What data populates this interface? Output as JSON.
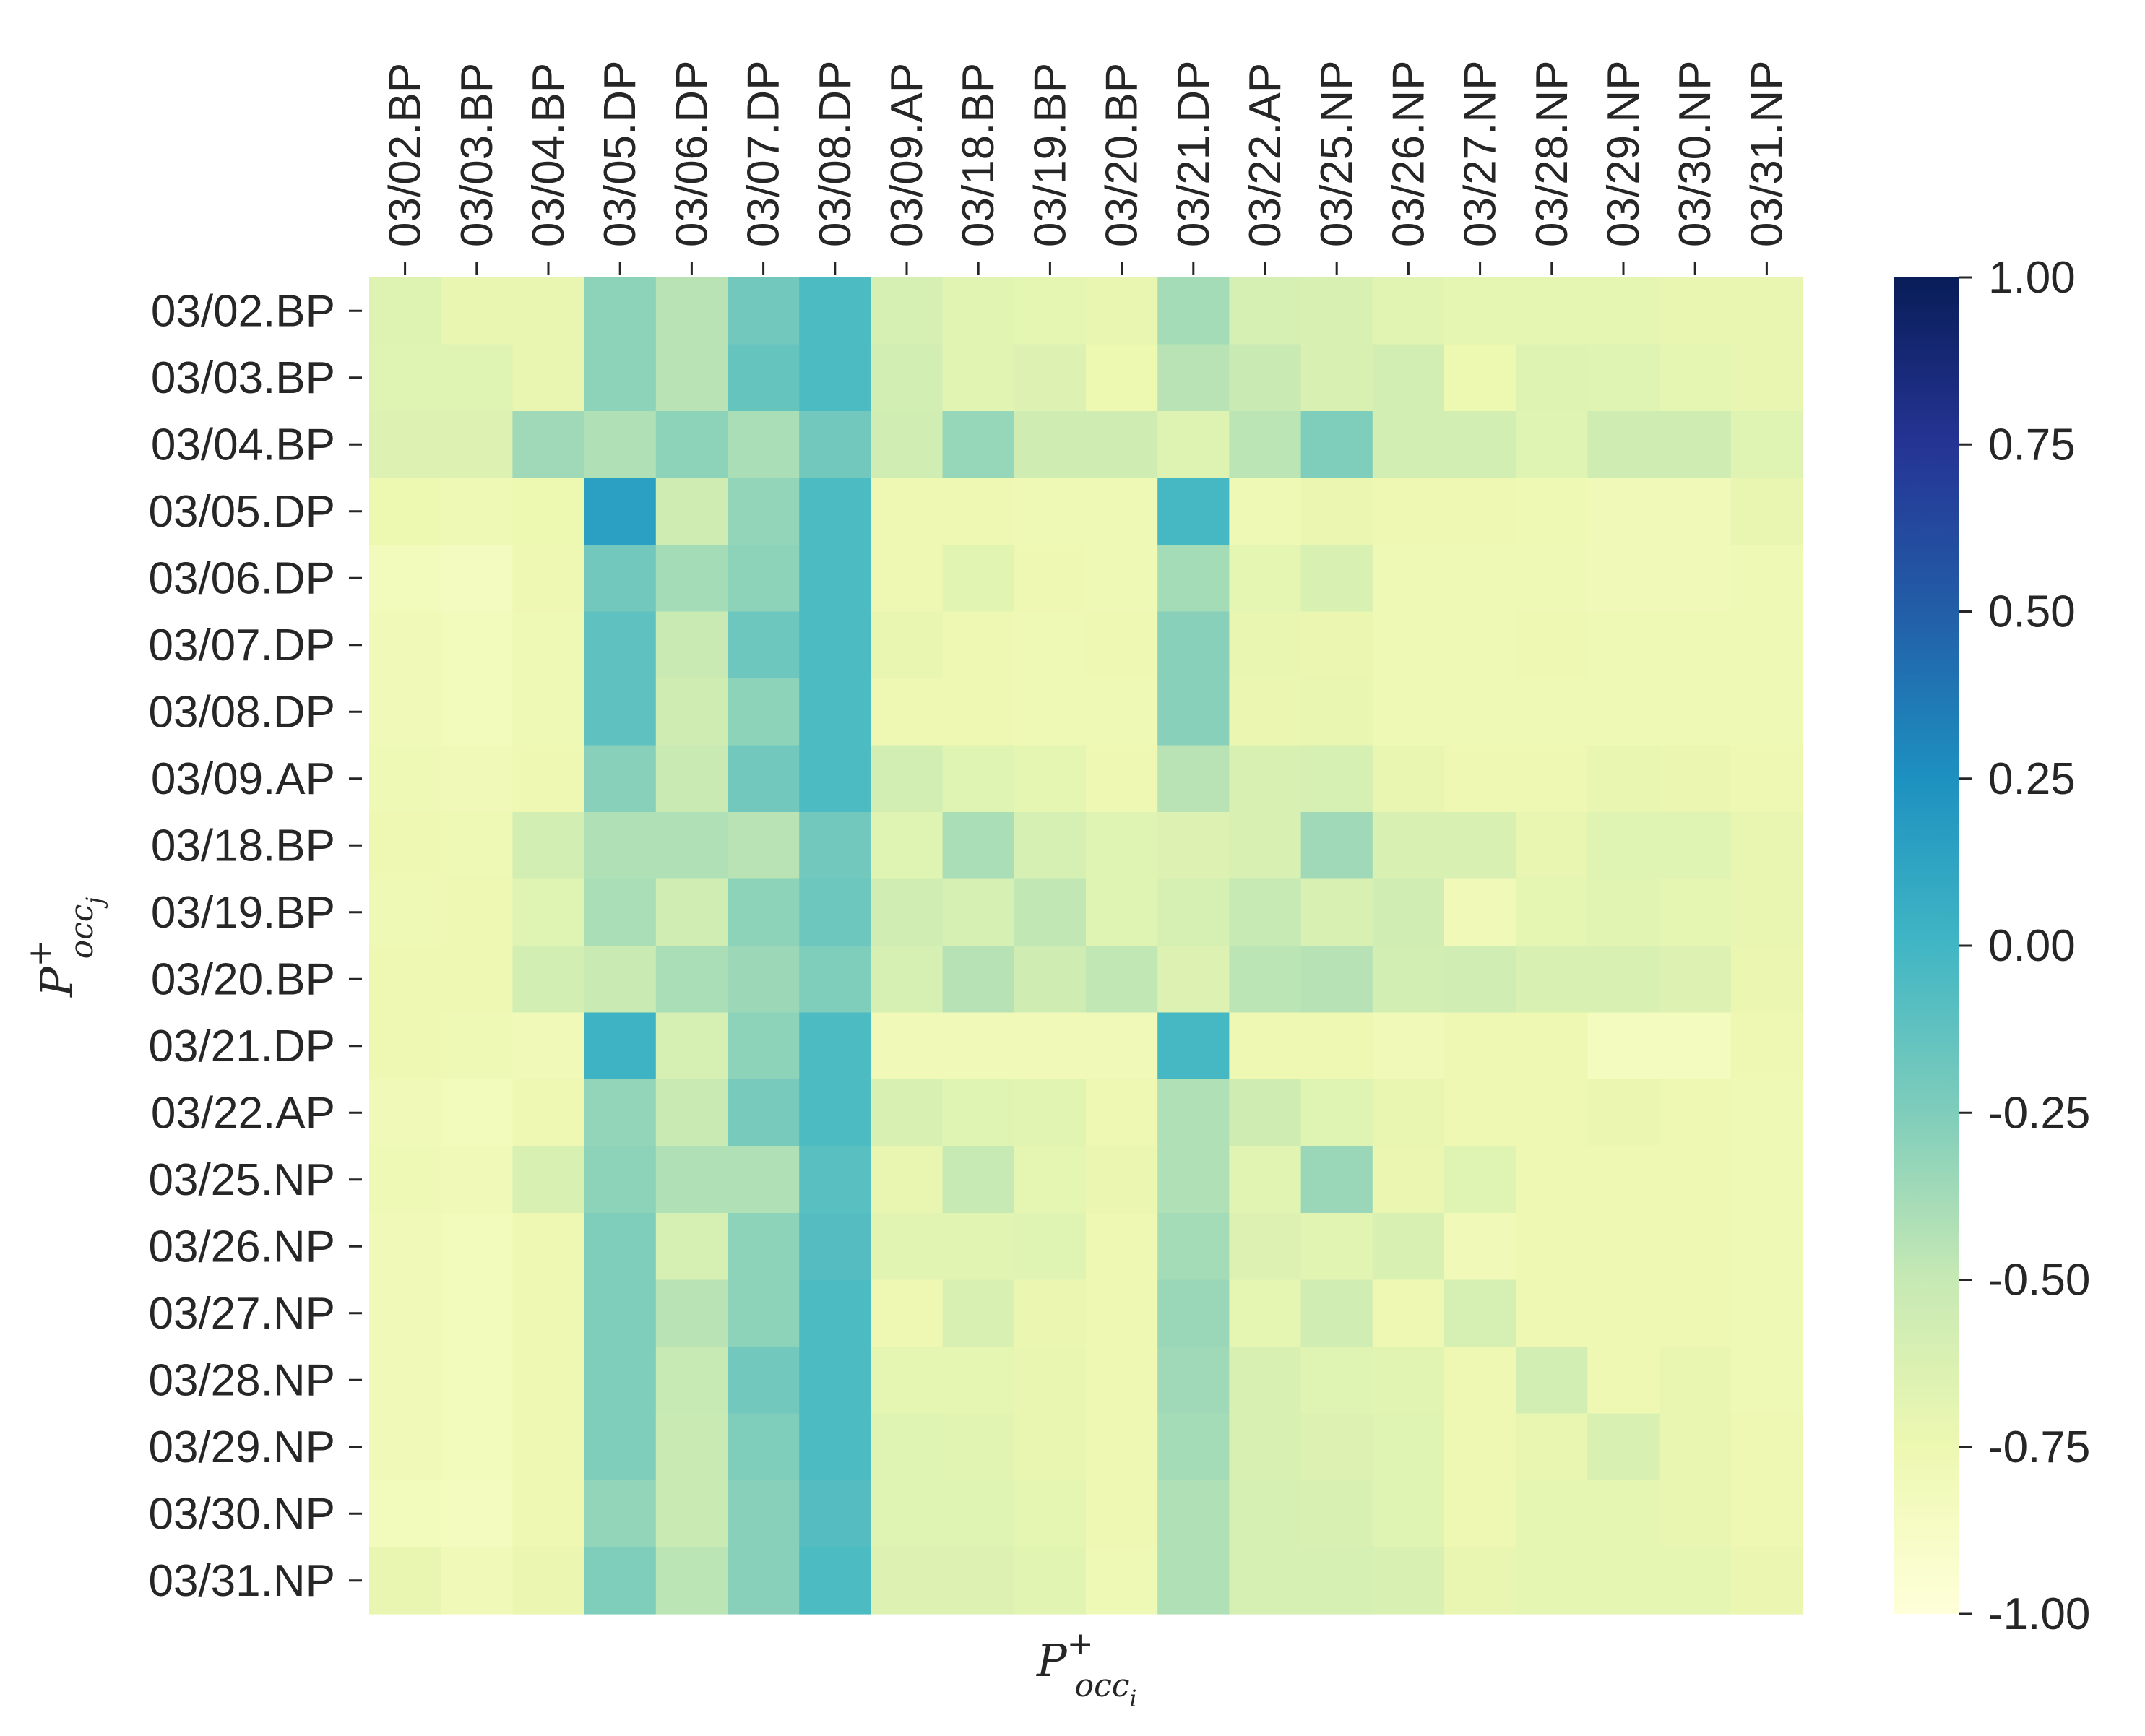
{
  "chart_data": {
    "type": "heatmap",
    "title": "",
    "xlabel": "P+occ_i",
    "ylabel": "P+occ_j",
    "xlabel_parts": {
      "base": "P",
      "sup": "+",
      "sub": "occ",
      "subsub": "i"
    },
    "ylabel_parts": {
      "base": "P",
      "sup": "+",
      "sub": "occ",
      "subsub": "j"
    },
    "x_categories": [
      "03/02.BP",
      "03/03.BP",
      "03/04.BP",
      "03/05.DP",
      "03/06.DP",
      "03/07.DP",
      "03/08.DP",
      "03/09.AP",
      "03/18.BP",
      "03/19.BP",
      "03/20.BP",
      "03/21.DP",
      "03/22.AP",
      "03/25.NP",
      "03/26.NP",
      "03/27.NP",
      "03/28.NP",
      "03/29.NP",
      "03/30.NP",
      "03/31.NP"
    ],
    "y_categories": [
      "03/02.BP",
      "03/03.BP",
      "03/04.BP",
      "03/05.DP",
      "03/06.DP",
      "03/07.DP",
      "03/08.DP",
      "03/09.AP",
      "03/18.BP",
      "03/19.BP",
      "03/20.BP",
      "03/21.DP",
      "03/22.AP",
      "03/25.NP",
      "03/26.NP",
      "03/27.NP",
      "03/28.NP",
      "03/29.NP",
      "03/30.NP",
      "03/31.NP"
    ],
    "colormap": "YlGnBu",
    "colormap_stops": [
      "#ffffd9",
      "#edf8b1",
      "#c7e9b4",
      "#7fcdbb",
      "#41b6c4",
      "#1d91c0",
      "#225ea8",
      "#253494",
      "#081d58"
    ],
    "vmin": -1.0,
    "vmax": 1.0,
    "colorbar_ticks": [
      "1.00",
      "0.75",
      "0.50",
      "0.25",
      "0.00",
      "-0.25",
      "-0.50",
      "-0.75",
      "-1.00"
    ],
    "colorbar_tick_values": [
      1.0,
      0.75,
      0.5,
      0.25,
      0.0,
      -0.25,
      -0.5,
      -0.75,
      -1.0
    ],
    "values": [
      [
        -0.65,
        -0.72,
        -0.72,
        -0.3,
        -0.45,
        -0.2,
        -0.05,
        -0.6,
        -0.68,
        -0.7,
        -0.72,
        -0.38,
        -0.6,
        -0.62,
        -0.68,
        -0.7,
        -0.7,
        -0.7,
        -0.72,
        -0.72
      ],
      [
        -0.66,
        -0.66,
        -0.72,
        -0.3,
        -0.45,
        -0.15,
        -0.05,
        -0.58,
        -0.68,
        -0.64,
        -0.75,
        -0.45,
        -0.52,
        -0.62,
        -0.58,
        -0.75,
        -0.65,
        -0.66,
        -0.7,
        -0.72
      ],
      [
        -0.64,
        -0.64,
        -0.36,
        -0.42,
        -0.3,
        -0.4,
        -0.2,
        -0.56,
        -0.33,
        -0.55,
        -0.55,
        -0.65,
        -0.46,
        -0.25,
        -0.58,
        -0.58,
        -0.66,
        -0.55,
        -0.55,
        -0.66
      ],
      [
        -0.75,
        -0.78,
        -0.75,
        0.15,
        -0.55,
        -0.32,
        -0.05,
        -0.76,
        -0.76,
        -0.78,
        -0.78,
        -0.02,
        -0.78,
        -0.74,
        -0.76,
        -0.76,
        -0.77,
        -0.8,
        -0.8,
        -0.72
      ],
      [
        -0.82,
        -0.85,
        -0.76,
        -0.2,
        -0.38,
        -0.3,
        -0.05,
        -0.76,
        -0.68,
        -0.76,
        -0.78,
        -0.38,
        -0.7,
        -0.62,
        -0.78,
        -0.78,
        -0.78,
        -0.8,
        -0.8,
        -0.78
      ],
      [
        -0.8,
        -0.82,
        -0.78,
        -0.12,
        -0.52,
        -0.18,
        -0.05,
        -0.72,
        -0.76,
        -0.78,
        -0.76,
        -0.28,
        -0.72,
        -0.74,
        -0.78,
        -0.78,
        -0.76,
        -0.78,
        -0.78,
        -0.78
      ],
      [
        -0.8,
        -0.82,
        -0.78,
        -0.12,
        -0.55,
        -0.3,
        -0.05,
        -0.76,
        -0.76,
        -0.78,
        -0.78,
        -0.28,
        -0.74,
        -0.72,
        -0.78,
        -0.78,
        -0.78,
        -0.78,
        -0.78,
        -0.78
      ],
      [
        -0.78,
        -0.8,
        -0.76,
        -0.28,
        -0.52,
        -0.2,
        -0.05,
        -0.58,
        -0.66,
        -0.7,
        -0.76,
        -0.45,
        -0.62,
        -0.6,
        -0.72,
        -0.76,
        -0.76,
        -0.72,
        -0.74,
        -0.76
      ],
      [
        -0.76,
        -0.78,
        -0.58,
        -0.42,
        -0.42,
        -0.45,
        -0.2,
        -0.66,
        -0.4,
        -0.6,
        -0.66,
        -0.64,
        -0.62,
        -0.36,
        -0.62,
        -0.62,
        -0.72,
        -0.66,
        -0.66,
        -0.72
      ],
      [
        -0.78,
        -0.76,
        -0.66,
        -0.4,
        -0.56,
        -0.3,
        -0.18,
        -0.56,
        -0.6,
        -0.48,
        -0.66,
        -0.6,
        -0.5,
        -0.62,
        -0.56,
        -0.8,
        -0.7,
        -0.68,
        -0.7,
        -0.72
      ],
      [
        -0.76,
        -0.76,
        -0.58,
        -0.52,
        -0.4,
        -0.35,
        -0.25,
        -0.6,
        -0.44,
        -0.55,
        -0.48,
        -0.64,
        -0.46,
        -0.44,
        -0.58,
        -0.56,
        -0.62,
        -0.62,
        -0.64,
        -0.74
      ],
      [
        -0.76,
        -0.78,
        -0.8,
        0.02,
        -0.6,
        -0.3,
        -0.05,
        -0.8,
        -0.8,
        -0.8,
        -0.8,
        -0.02,
        -0.76,
        -0.76,
        -0.8,
        -0.76,
        -0.76,
        -0.84,
        -0.84,
        -0.76
      ],
      [
        -0.8,
        -0.82,
        -0.76,
        -0.32,
        -0.52,
        -0.22,
        -0.05,
        -0.62,
        -0.66,
        -0.68,
        -0.76,
        -0.42,
        -0.55,
        -0.66,
        -0.72,
        -0.76,
        -0.76,
        -0.74,
        -0.76,
        -0.78
      ],
      [
        -0.78,
        -0.8,
        -0.62,
        -0.3,
        -0.42,
        -0.42,
        -0.1,
        -0.72,
        -0.5,
        -0.7,
        -0.74,
        -0.42,
        -0.68,
        -0.34,
        -0.74,
        -0.66,
        -0.76,
        -0.76,
        -0.76,
        -0.78
      ],
      [
        -0.8,
        -0.82,
        -0.76,
        -0.25,
        -0.6,
        -0.3,
        -0.08,
        -0.68,
        -0.68,
        -0.66,
        -0.76,
        -0.38,
        -0.64,
        -0.68,
        -0.62,
        -0.8,
        -0.76,
        -0.76,
        -0.76,
        -0.78
      ],
      [
        -0.8,
        -0.82,
        -0.76,
        -0.25,
        -0.45,
        -0.3,
        -0.05,
        -0.76,
        -0.62,
        -0.74,
        -0.76,
        -0.34,
        -0.7,
        -0.56,
        -0.76,
        -0.6,
        -0.76,
        -0.76,
        -0.76,
        -0.78
      ],
      [
        -0.8,
        -0.82,
        -0.76,
        -0.25,
        -0.5,
        -0.2,
        -0.05,
        -0.7,
        -0.7,
        -0.72,
        -0.76,
        -0.36,
        -0.62,
        -0.66,
        -0.68,
        -0.76,
        -0.58,
        -0.76,
        -0.72,
        -0.78
      ],
      [
        -0.8,
        -0.82,
        -0.76,
        -0.25,
        -0.52,
        -0.25,
        -0.05,
        -0.66,
        -0.68,
        -0.72,
        -0.76,
        -0.38,
        -0.62,
        -0.64,
        -0.66,
        -0.76,
        -0.72,
        -0.62,
        -0.72,
        -0.76
      ],
      [
        -0.82,
        -0.84,
        -0.76,
        -0.32,
        -0.52,
        -0.28,
        -0.08,
        -0.66,
        -0.66,
        -0.7,
        -0.76,
        -0.42,
        -0.6,
        -0.62,
        -0.66,
        -0.76,
        -0.7,
        -0.7,
        -0.72,
        -0.76
      ],
      [
        -0.72,
        -0.8,
        -0.74,
        -0.25,
        -0.46,
        -0.28,
        -0.05,
        -0.64,
        -0.64,
        -0.68,
        -0.78,
        -0.42,
        -0.6,
        -0.6,
        -0.62,
        -0.72,
        -0.7,
        -0.7,
        -0.7,
        -0.74
      ]
    ]
  }
}
